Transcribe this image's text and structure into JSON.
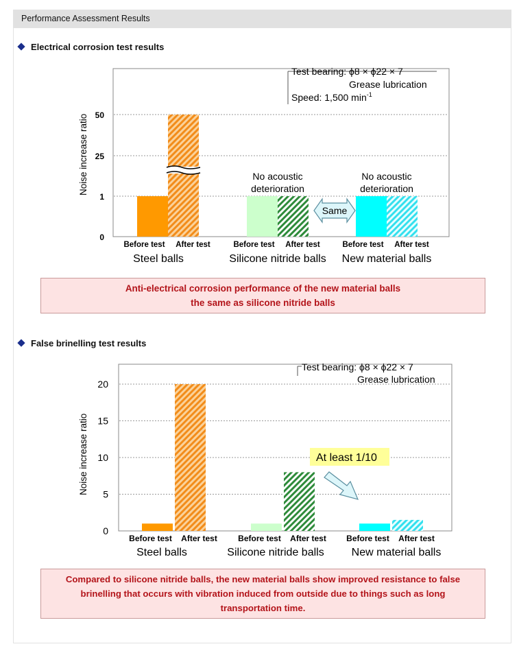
{
  "page_title": "Performance Assessment Results",
  "chart_data": [
    {
      "type": "bar",
      "section_title": "Electrical corrosion test results",
      "ylabel": "Noise increase ratio",
      "ytick_labels": [
        "0",
        "1",
        "25",
        "50"
      ],
      "axis_break": true,
      "grid": true,
      "annotation_lines": [
        "Test bearing: ϕ8 × ϕ22 × 7",
        "Grease lubrication",
        "Speed: 1,500 min"
      ],
      "speed_superscript": "-1",
      "categories": [
        "Steel balls",
        "Silicone nitride balls",
        "New material balls"
      ],
      "series": [
        {
          "name": "Before test",
          "values": [
            1,
            1,
            1
          ]
        },
        {
          "name": "After test",
          "values": [
            50,
            1,
            1
          ]
        }
      ],
      "category_notes": [
        "",
        "No acoustic deterioration",
        "No acoustic deterioration"
      ],
      "same_label": "Same",
      "colors": {
        "steel": "#ff9900",
        "steel_after": "#f5a94a",
        "silicone": "#ccffcc",
        "silicone_after": "#339933",
        "newmat": "#00ffff",
        "newmat_after": "#66e6ee"
      },
      "conclusion": [
        "Anti-electrical corrosion performance of the new material balls",
        "the same as silicone nitride balls"
      ]
    },
    {
      "type": "bar",
      "section_title": "False brinelling test results",
      "ylabel": "Noise increase ratio",
      "ylim": [
        0,
        20
      ],
      "yticks": [
        0,
        5,
        10,
        15,
        20
      ],
      "grid": true,
      "annotation_lines": [
        "Test bearing: ϕ8 × ϕ22 × 7",
        "Grease lubrication"
      ],
      "categories": [
        "Steel balls",
        "Silicone nitride balls",
        "New material balls"
      ],
      "series": [
        {
          "name": "Before test",
          "values": [
            1,
            1,
            1
          ]
        },
        {
          "name": "After test",
          "values": [
            20,
            8,
            1.5
          ]
        }
      ],
      "callout": "At least 1/10",
      "conclusion": [
        "Compared to silicone nitride balls, the new material balls show improved resistance to false",
        "brinelling that occurs with vibration induced from outside due to things such as long",
        "transportation time."
      ]
    }
  ]
}
